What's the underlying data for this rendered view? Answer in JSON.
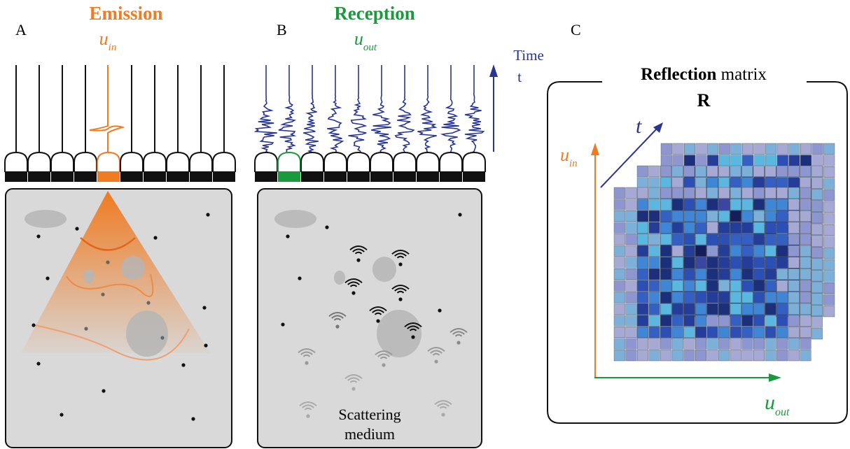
{
  "panels": [
    {
      "label": "A",
      "title": "Emission",
      "signal": {
        "base": "u",
        "sub": "in"
      }
    },
    {
      "label": "B",
      "title": "Reception",
      "signal": {
        "base": "u",
        "sub": "out"
      },
      "time_axis": {
        "title": "Time",
        "symbol": "t"
      },
      "medium": [
        "Scattering",
        "medium"
      ]
    },
    {
      "label": "C",
      "title": {
        "bold": "Reflection",
        "rest": "matrix",
        "symbol": "R"
      },
      "axes": {
        "t": "t",
        "y": {
          "base": "u",
          "sub": "in"
        },
        "x": {
          "base": "u",
          "sub": "out"
        }
      }
    }
  ]
}
